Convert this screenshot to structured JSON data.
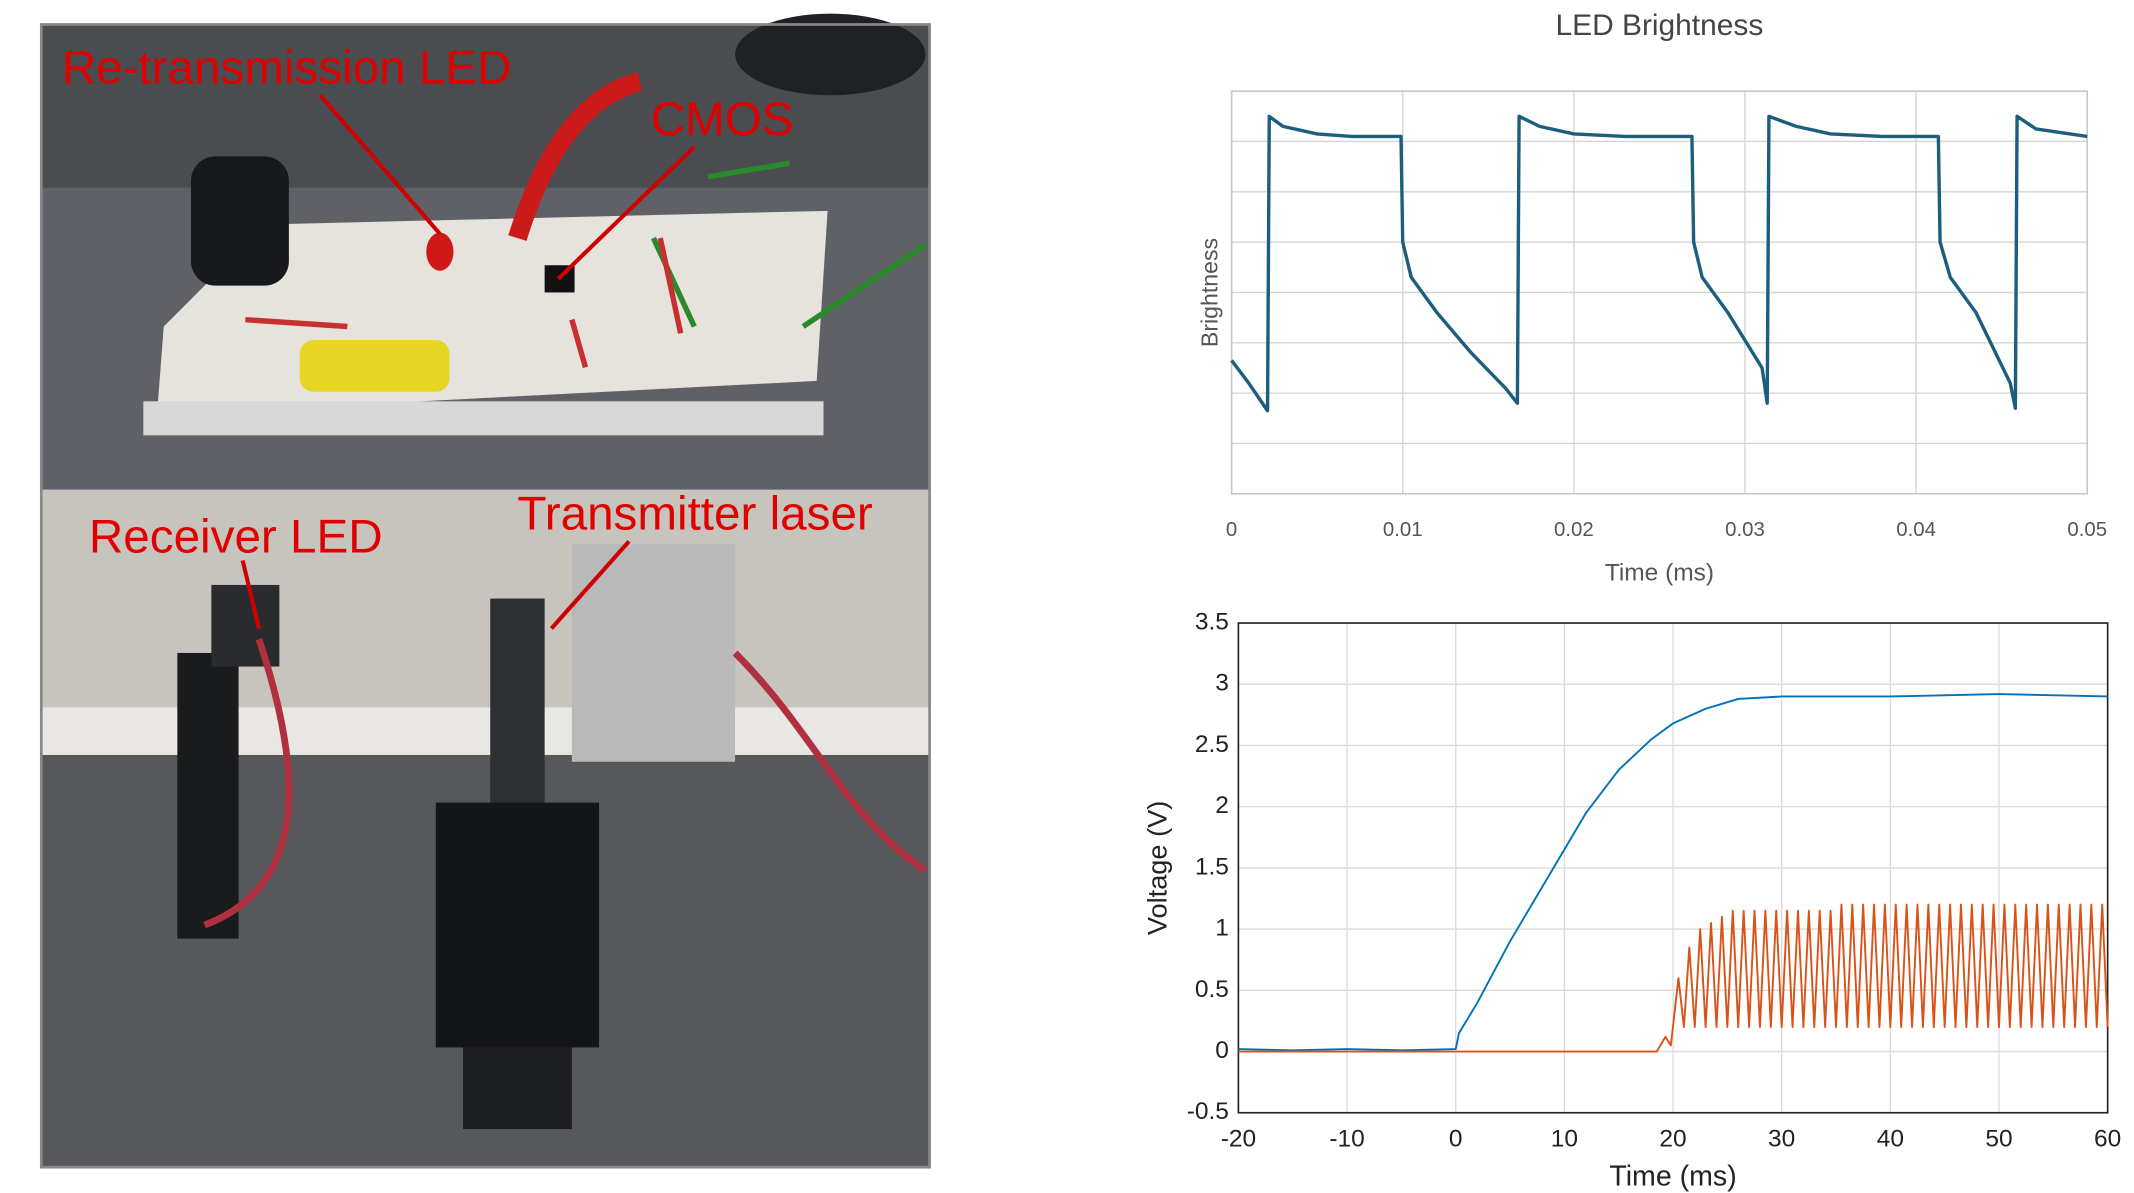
{
  "photo": {
    "labels": [
      "Re-transmission LED",
      "CMOS",
      "Receiver LED",
      "Transmitter laser"
    ]
  },
  "chart_data": [
    {
      "type": "line",
      "title": "LED Brightness",
      "x_label": "Time (ms)",
      "y_label": "Brightness",
      "xlim": [
        0,
        0.05
      ],
      "xticks": [
        0,
        0.01,
        0.02,
        0.03,
        0.04,
        0.05
      ],
      "ylim": [
        0,
        8
      ],
      "yticks": [
        0,
        1,
        2,
        3,
        4,
        5,
        6,
        7,
        8
      ],
      "show_ytick_labels": false,
      "grid": true,
      "series": [
        {
          "color": "#1d5e7e",
          "x": [
            0,
            0.001,
            0.0021,
            0.0022,
            0.003,
            0.005,
            0.007,
            0.0099,
            0.01,
            0.0105,
            0.012,
            0.014,
            0.016,
            0.0167,
            0.0168,
            0.018,
            0.02,
            0.023,
            0.0269,
            0.027,
            0.0275,
            0.029,
            0.031,
            0.0313,
            0.0314,
            0.033,
            0.035,
            0.038,
            0.0413,
            0.0414,
            0.042,
            0.0435,
            0.0455,
            0.0458,
            0.0459,
            0.047,
            0.05
          ],
          "values": [
            2.65,
            2.2,
            1.65,
            7.5,
            7.3,
            7.15,
            7.1,
            7.1,
            5.0,
            4.3,
            3.6,
            2.8,
            2.1,
            1.8,
            7.5,
            7.3,
            7.15,
            7.1,
            7.1,
            5.0,
            4.3,
            3.6,
            2.5,
            1.8,
            7.5,
            7.3,
            7.15,
            7.1,
            7.1,
            5.0,
            4.3,
            3.6,
            2.2,
            1.7,
            7.5,
            7.25,
            7.1
          ]
        }
      ]
    },
    {
      "type": "line",
      "x_label": "Time (ms)",
      "y_label": "Voltage (V)",
      "xlim": [
        -20,
        60
      ],
      "xticks": [
        -20,
        -10,
        0,
        10,
        20,
        30,
        40,
        50,
        60
      ],
      "ylim": [
        -0.5,
        3.5
      ],
      "yticks": [
        -0.5,
        0,
        0.5,
        1,
        1.5,
        2,
        2.5,
        3,
        3.5
      ],
      "show_ytick_labels": true,
      "grid": true,
      "series": [
        {
          "color": "#0072bd",
          "x": [
            -20,
            -15,
            -10,
            -5,
            0,
            0.3,
            2,
            5,
            8,
            10,
            12,
            15,
            18,
            20,
            23,
            26,
            30,
            40,
            50,
            60
          ],
          "values": [
            0.02,
            0.01,
            0.02,
            0.01,
            0.02,
            0.15,
            0.4,
            0.9,
            1.35,
            1.65,
            1.95,
            2.3,
            2.55,
            2.68,
            2.8,
            2.88,
            2.9,
            2.9,
            2.92,
            2.9
          ]
        },
        {
          "color": "#d95319",
          "x": [
            -20,
            0,
            18.5,
            19.3,
            19.8,
            20.5,
            21,
            21.5,
            22,
            22.5,
            23,
            23.5,
            24,
            24.5,
            25,
            25.5,
            26,
            26.5,
            27,
            27.5,
            28,
            28.5,
            29,
            29.5,
            30,
            30.5,
            31,
            31.5,
            32,
            32.5,
            33,
            33.5,
            34,
            34.5,
            35,
            35.5,
            36,
            36.5,
            37,
            37.5,
            38,
            38.5,
            39,
            39.5,
            40,
            40.5,
            41,
            41.5,
            42,
            42.5,
            43,
            43.5,
            44,
            44.5,
            45,
            45.5,
            46,
            46.5,
            47,
            47.5,
            48,
            48.5,
            49,
            49.5,
            50,
            50.5,
            51,
            51.5,
            52,
            52.5,
            53,
            53.5,
            54,
            54.5,
            55,
            55.5,
            56,
            56.5,
            57,
            57.5,
            58,
            58.5,
            59,
            59.5,
            60
          ],
          "values": [
            0,
            0,
            0,
            0.12,
            0.05,
            0.6,
            0.2,
            0.85,
            0.2,
            1.0,
            0.2,
            1.05,
            0.2,
            1.1,
            0.2,
            1.15,
            0.2,
            1.15,
            0.2,
            1.15,
            0.2,
            1.15,
            0.2,
            1.15,
            0.2,
            1.15,
            0.2,
            1.15,
            0.2,
            1.15,
            0.2,
            1.15,
            0.2,
            1.15,
            0.2,
            1.2,
            0.2,
            1.2,
            0.2,
            1.2,
            0.2,
            1.2,
            0.2,
            1.2,
            0.2,
            1.2,
            0.2,
            1.2,
            0.2,
            1.2,
            0.2,
            1.2,
            0.2,
            1.2,
            0.2,
            1.2,
            0.2,
            1.2,
            0.2,
            1.2,
            0.2,
            1.2,
            0.2,
            1.2,
            0.2,
            1.2,
            0.2,
            1.2,
            0.2,
            1.2,
            0.2,
            1.2,
            0.2,
            1.2,
            0.2,
            1.2,
            0.2,
            1.2,
            0.2,
            1.2,
            0.2,
            1.2,
            0.2,
            1.2,
            0.2
          ]
        }
      ]
    }
  ]
}
